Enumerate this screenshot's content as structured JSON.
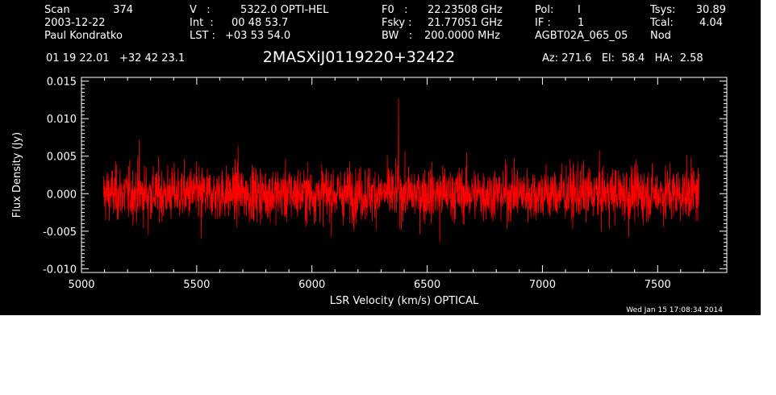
{
  "header": {
    "col1": [
      "Scan",
      "2003-12-22",
      "Paul Kondratko"
    ],
    "col1_value": "374",
    "col2_labels": [
      "V   :",
      "Int  :",
      "LST :"
    ],
    "col2_values": [
      "5322.0 OPTI-HEL",
      "00 48 53.7",
      "+03 53 54.0"
    ],
    "col3_labels": [
      "F0   :",
      "Fsky :",
      "BW   :"
    ],
    "col3_values": [
      "22.23508 GHz",
      "21.77051 GHz",
      "200.0000 MHz"
    ],
    "col4_labels": [
      "Pol:",
      "IF :",
      ""
    ],
    "col4_values": [
      "I",
      "1",
      "AGBT02A_065_05"
    ],
    "col5_labels": [
      "Tsys:",
      "Tcal:",
      "Nod"
    ],
    "col5_values": [
      "30.89",
      "4.04",
      ""
    ],
    "coords": "01 19 22.01   +32 42 23.1",
    "object": "2MASXiJ0119220+32422",
    "pointing": "Az: 271.6   El:  58.4   HA:  2.58"
  },
  "timestamp": "Wed Jan 15 17:08:34 2014",
  "colors": {
    "background": "#000000",
    "axes": "#ffffff",
    "spectrum": "#ff0000"
  },
  "chart_data": {
    "type": "line",
    "xlabel": "LSR Velocity (km/s) OPTICAL",
    "ylabel": "Flux Density (Jy)",
    "xlim": [
      5000,
      7800
    ],
    "ylim": [
      -0.0105,
      0.0155
    ],
    "xticks": [
      5000,
      5500,
      6000,
      6500,
      7000,
      7500
    ],
    "xtick_labels": [
      "5000",
      "5500",
      "6000",
      "6500",
      "7000",
      "7500"
    ],
    "yticks": [
      -0.01,
      -0.005,
      0.0,
      0.005,
      0.01,
      0.015
    ],
    "ytick_labels": [
      "-0.010",
      "-0.005",
      "0.000",
      "0.005",
      "0.010",
      "0.015"
    ],
    "series": [
      {
        "x_range": [
          5095,
          7680
        ],
        "noise_rms": 0.0018,
        "mean": 0.0,
        "spikes": [
          {
            "x": 6376,
            "y": 0.0127
          },
          {
            "x": 5250,
            "y": 0.0072
          },
          {
            "x": 5680,
            "y": 0.0063
          },
          {
            "x": 5290,
            "y": -0.0055
          },
          {
            "x": 5520,
            "y": -0.006
          },
          {
            "x": 6555,
            "y": -0.0065
          },
          {
            "x": 7375,
            "y": -0.0058
          },
          {
            "x": 7645,
            "y": 0.0048
          }
        ]
      }
    ]
  }
}
